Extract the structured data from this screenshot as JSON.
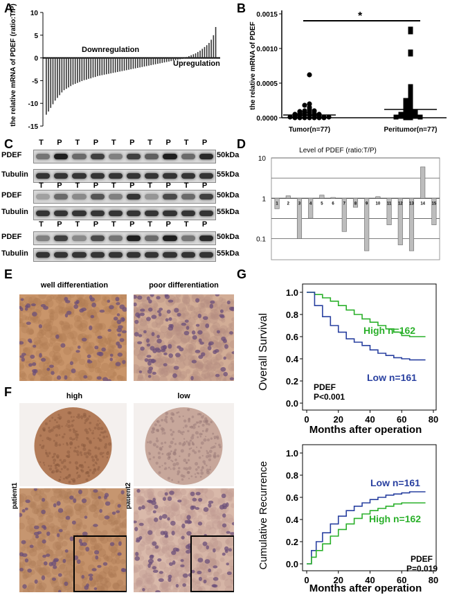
{
  "panel_letters": [
    "A",
    "B",
    "C",
    "D",
    "E",
    "F",
    "G"
  ],
  "panel_a": {
    "chart_data": {
      "type": "bar",
      "ylabel": "the relative mRNA of PDEF (ratio:T/P)",
      "ylim": [
        -15,
        10
      ],
      "yticks": [
        10,
        5,
        0,
        -5,
        -10,
        -15
      ],
      "annotations": [
        "Downregulation",
        "Upregulation"
      ],
      "values": [
        -12.5,
        -11.8,
        -11.0,
        -10.2,
        -9.4,
        -8.8,
        -8.2,
        -7.6,
        -7.1,
        -6.8,
        -6.5,
        -6.2,
        -5.9,
        -5.7,
        -5.5,
        -5.3,
        -5.1,
        -4.9,
        -4.8,
        -4.6,
        -4.5,
        -4.3,
        -4.2,
        -4.0,
        -3.9,
        -3.8,
        -3.7,
        -3.6,
        -3.5,
        -3.4,
        -3.3,
        -3.2,
        -3.1,
        -3.0,
        -2.9,
        -2.8,
        -2.7,
        -2.6,
        -2.5,
        -2.4,
        -2.3,
        -2.2,
        -2.1,
        -2.0,
        -1.9,
        -1.8,
        -1.7,
        -1.6,
        -1.5,
        -1.4,
        -1.3,
        -1.2,
        -1.1,
        -1.0,
        -0.9,
        -0.8,
        -0.7,
        -0.6,
        -0.5,
        -0.4,
        -0.3,
        -0.2,
        -0.1,
        0.2,
        0.4,
        0.6,
        0.8,
        1.0,
        1.3,
        1.6,
        2.0,
        2.4,
        2.8,
        3.3,
        4.0,
        5.0,
        6.8
      ]
    }
  },
  "panel_b": {
    "chart_data": {
      "type": "scatter",
      "ylabel": "the relative mRNA of PDEF",
      "ylim": [
        0,
        0.0015
      ],
      "yticks": [
        "0.0015",
        "0.0010",
        "0.0005",
        "0.0000"
      ],
      "categories": [
        "Tumor(n=77)",
        "Peritumor(n=77)"
      ],
      "significance": "*",
      "series": [
        {
          "values": [
            0.00062,
            0.0002,
            0.00018,
            0.00015,
            0.00012,
            0.0001,
            0.0001,
            9e-05,
            8e-05,
            7e-05,
            6e-05,
            6e-05,
            5e-05,
            5e-05,
            4e-05,
            4e-05,
            3e-05,
            3e-05,
            2e-05,
            2e-05,
            1e-05,
            1e-05,
            1e-05,
            0.0,
            0.0,
            0.0,
            0.0,
            0.0,
            0.0,
            0.0
          ],
          "mean": 4e-05
        },
        {
          "values": [
            0.00128,
            0.00124,
            0.00095,
            0.00092,
            0.00045,
            0.0004,
            0.00035,
            0.0003,
            0.00028,
            0.00025,
            0.00022,
            0.0002,
            0.00018,
            0.00016,
            0.00014,
            0.00012,
            0.0001,
            9e-05,
            8e-05,
            7e-05,
            6e-05,
            5e-05,
            4e-05,
            3e-05,
            2e-05,
            2e-05,
            1e-05,
            1e-05,
            0.0,
            0.0
          ],
          "mean": 0.00012
        }
      ]
    }
  },
  "panel_c": {
    "lanes": [
      "T",
      "P",
      "T",
      "P",
      "T",
      "P",
      "T",
      "P",
      "T",
      "P"
    ],
    "rows": [
      "PDEF",
      "Tubulin"
    ],
    "sizes": [
      "50kDa",
      "55kDa"
    ]
  },
  "panel_d": {
    "chart_data": {
      "type": "bar",
      "title": "Level of PDEF (ratio:T/P)",
      "scale": "log",
      "yticks": [
        "10",
        "1",
        "0.1"
      ],
      "categories": [
        "1",
        "2",
        "3",
        "4",
        "5",
        "6",
        "7",
        "8",
        "9",
        "10",
        "11",
        "12",
        "13",
        "14",
        "15"
      ],
      "values": [
        0.55,
        1.15,
        0.1,
        0.32,
        1.2,
        1.05,
        0.15,
        0.6,
        0.05,
        1.1,
        0.22,
        0.07,
        0.05,
        6.0,
        0.22
      ]
    }
  },
  "panel_e": {
    "labels": [
      "well differentiation",
      "poor differentiation"
    ]
  },
  "panel_f": {
    "labels": [
      "high",
      "low"
    ],
    "patients": [
      "patient1",
      "patient2"
    ]
  },
  "panel_g": {
    "survival": {
      "chart_data": {
        "type": "line",
        "ylabel": "Overall Survival",
        "xlabel": "Months after operation",
        "xlim": [
          0,
          80
        ],
        "ylim": [
          0,
          1.0
        ],
        "xticks": [
          "0",
          "20",
          "40",
          "60",
          "80"
        ],
        "yticks": [
          "1.0",
          "0.8",
          "0.6",
          "0.4",
          "0.2",
          "0.0"
        ],
        "annotation": [
          "PDEF",
          "P<0.001"
        ],
        "series": [
          {
            "name": "High n=162",
            "color": "#2ab02a",
            "x": [
              0,
              5,
              10,
              15,
              20,
              25,
              30,
              35,
              40,
              45,
              50,
              55,
              60,
              65,
              70,
              75
            ],
            "y": [
              1.0,
              0.98,
              0.95,
              0.92,
              0.88,
              0.84,
              0.8,
              0.76,
              0.73,
              0.7,
              0.67,
              0.64,
              0.61,
              0.6,
              0.6,
              0.6
            ]
          },
          {
            "name": "Low n=161",
            "color": "#2940a0",
            "x": [
              0,
              5,
              10,
              15,
              20,
              25,
              30,
              35,
              40,
              45,
              50,
              55,
              60,
              65,
              70,
              75
            ],
            "y": [
              1.0,
              0.88,
              0.78,
              0.7,
              0.64,
              0.58,
              0.55,
              0.52,
              0.48,
              0.45,
              0.43,
              0.41,
              0.4,
              0.39,
              0.39,
              0.39
            ]
          }
        ]
      }
    },
    "recurrence": {
      "chart_data": {
        "type": "line",
        "ylabel": "Cumulative Recurrence",
        "xlabel": "Months after operation",
        "xlim": [
          0,
          80
        ],
        "ylim": [
          0,
          1.0
        ],
        "xticks": [
          "0",
          "20",
          "40",
          "60",
          "80"
        ],
        "yticks": [
          "1.0",
          "0.8",
          "0.6",
          "0.4",
          "0.2",
          "0.0"
        ],
        "annotation": [
          "PDEF",
          "P=0.019"
        ],
        "series": [
          {
            "name": "Low n=161",
            "color": "#2940a0",
            "x": [
              0,
              3,
              6,
              10,
              15,
              20,
              25,
              30,
              35,
              40,
              45,
              50,
              55,
              60,
              65,
              70,
              75
            ],
            "y": [
              0.0,
              0.12,
              0.2,
              0.28,
              0.36,
              0.43,
              0.48,
              0.52,
              0.55,
              0.58,
              0.6,
              0.62,
              0.63,
              0.64,
              0.65,
              0.65,
              0.65
            ]
          },
          {
            "name": "High n=162",
            "color": "#2ab02a",
            "x": [
              0,
              3,
              6,
              10,
              15,
              20,
              25,
              30,
              35,
              40,
              45,
              50,
              55,
              60,
              65,
              70,
              75
            ],
            "y": [
              0.0,
              0.06,
              0.12,
              0.18,
              0.25,
              0.31,
              0.36,
              0.41,
              0.45,
              0.48,
              0.5,
              0.52,
              0.54,
              0.55,
              0.55,
              0.55,
              0.55
            ]
          }
        ]
      }
    }
  }
}
